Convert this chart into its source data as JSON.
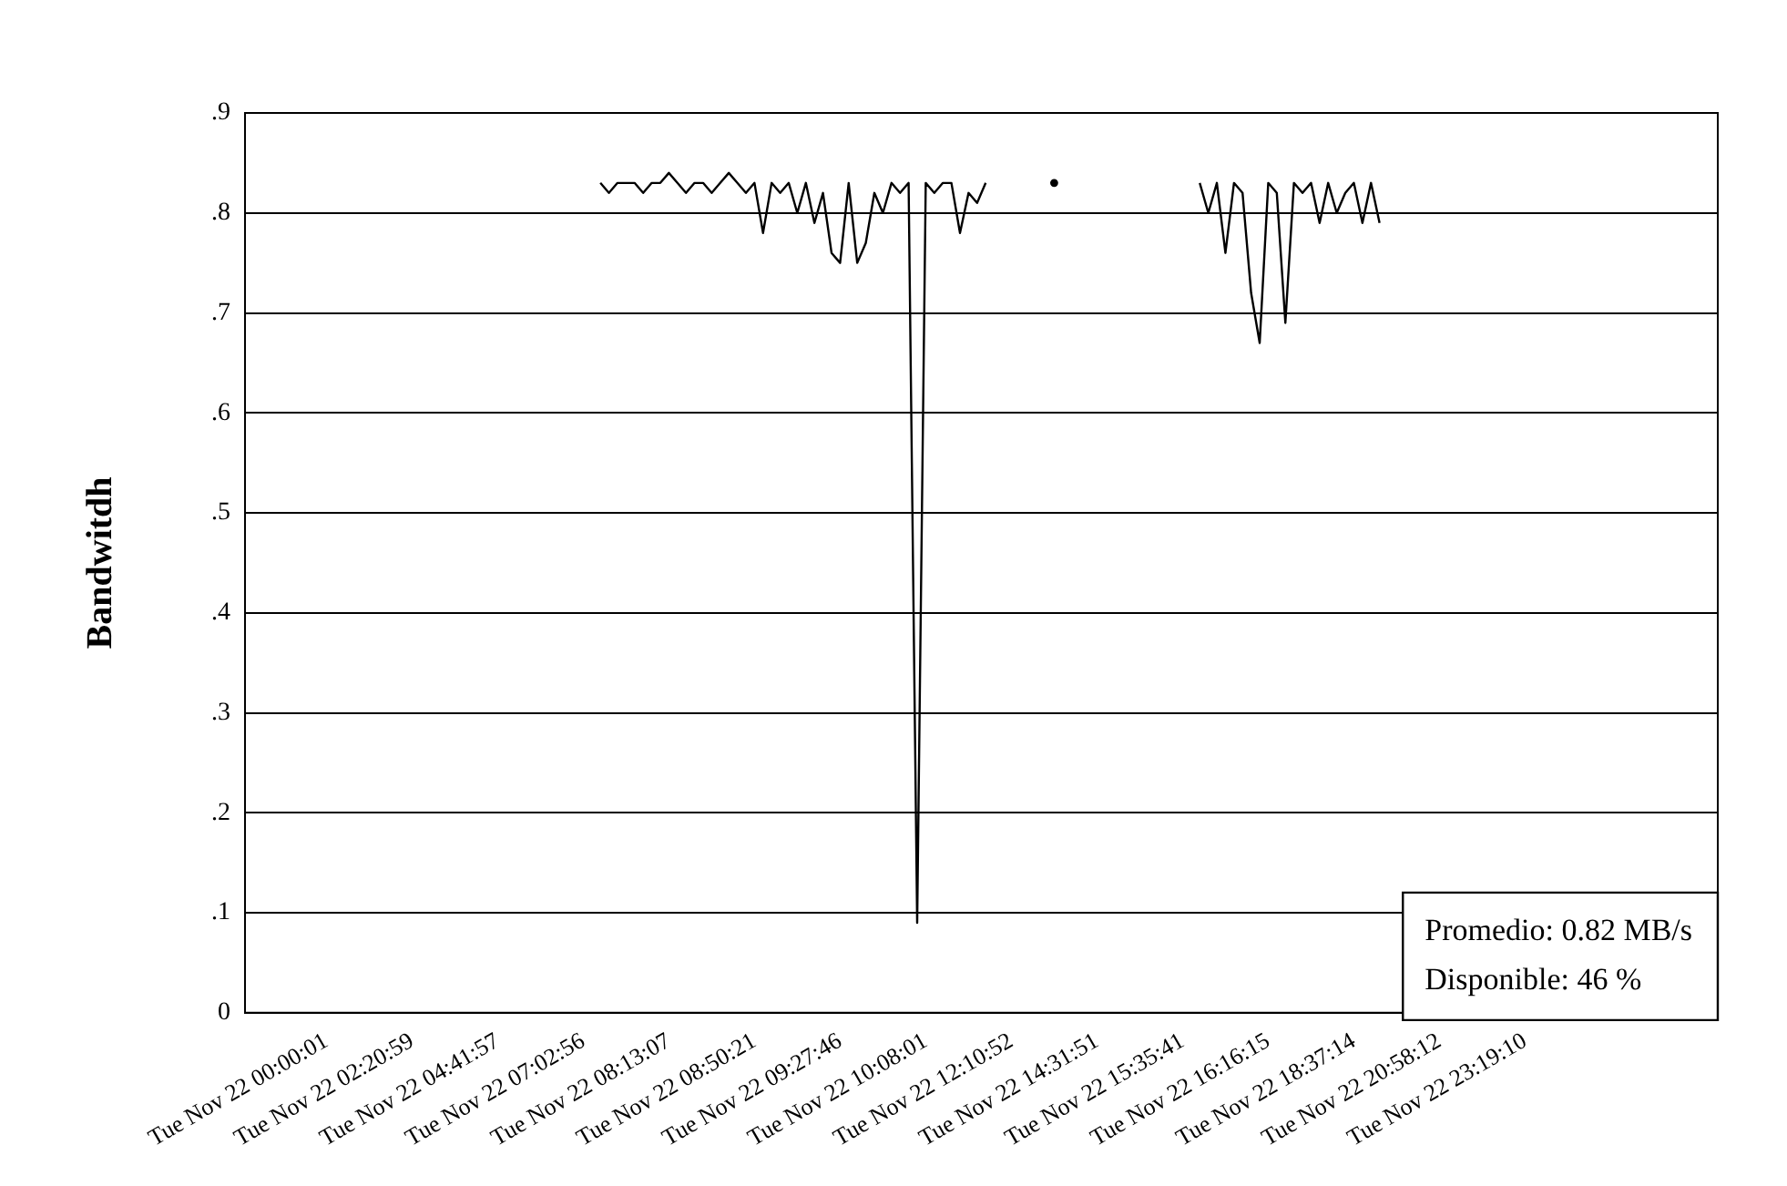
{
  "chart_data": {
    "type": "line",
    "ylabel": "Bandwitdh",
    "categories": [
      null,
      null,
      null,
      null,
      null,
      null,
      null,
      null,
      null,
      "Tue Nov 22 00:00:01",
      null,
      null,
      null,
      null,
      null,
      null,
      null,
      null,
      null,
      "Tue Nov 22 02:20:59",
      null,
      null,
      null,
      null,
      null,
      null,
      null,
      null,
      null,
      "Tue Nov 22 04:41:57",
      null,
      null,
      null,
      null,
      null,
      null,
      null,
      null,
      null,
      "Tue Nov 22 07:02:56",
      null,
      null,
      null,
      null,
      null,
      null,
      null,
      null,
      null,
      "Tue Nov 22 08:13:07",
      null,
      null,
      null,
      null,
      null,
      null,
      null,
      null,
      null,
      "Tue Nov 22 08:50:21",
      null,
      null,
      null,
      null,
      null,
      null,
      null,
      null,
      null,
      "Tue Nov 22 09:27:46",
      null,
      null,
      null,
      null,
      null,
      null,
      null,
      null,
      null,
      "Tue Nov 22 10:08:01",
      null,
      null,
      null,
      null,
      null,
      null,
      null,
      null,
      null,
      "Tue Nov 22 12:10:52",
      null,
      null,
      null,
      null,
      null,
      null,
      null,
      null,
      null,
      "Tue Nov 22 14:31:51",
      null,
      null,
      null,
      null,
      null,
      null,
      null,
      null,
      null,
      "Tue Nov 22 15:35:41",
      null,
      null,
      null,
      null,
      null,
      null,
      null,
      null,
      null,
      "Tue Nov 22 16:16:15",
      null,
      null,
      null,
      null,
      null,
      null,
      null,
      null,
      null,
      "Tue Nov 22 18:37:14",
      null,
      null,
      null,
      null,
      null,
      null,
      null,
      null,
      null,
      "Tue Nov 22 20:58:12",
      null,
      null,
      null,
      null,
      null,
      null,
      null,
      null,
      null,
      "Tue Nov 22 23:19:10",
      null,
      null,
      null,
      null,
      null,
      null,
      null,
      null,
      null,
      null,
      null,
      null,
      null,
      null,
      null,
      null,
      null,
      null,
      null,
      null,
      null,
      null
    ],
    "series": [
      {
        "color": "#000000",
        "values": [
          null,
          null,
          null,
          null,
          null,
          null,
          null,
          null,
          null,
          null,
          null,
          null,
          null,
          null,
          null,
          null,
          null,
          null,
          null,
          null,
          null,
          null,
          null,
          null,
          null,
          null,
          null,
          null,
          null,
          null,
          null,
          null,
          null,
          null,
          null,
          null,
          null,
          null,
          null,
          null,
          null,
          0.83,
          0.82,
          0.83,
          0.83,
          0.83,
          0.82,
          0.83,
          0.83,
          0.84,
          0.83,
          0.82,
          0.83,
          0.83,
          0.82,
          0.83,
          0.84,
          0.83,
          0.82,
          0.83,
          0.78,
          0.83,
          0.82,
          0.83,
          0.8,
          0.83,
          0.79,
          0.82,
          0.76,
          0.75,
          0.83,
          0.75,
          0.77,
          0.82,
          0.8,
          0.83,
          0.82,
          0.83,
          0.09,
          0.83,
          0.82,
          0.83,
          0.83,
          0.78,
          0.82,
          0.81,
          0.83,
          null,
          null,
          null,
          null,
          null,
          null,
          null,
          0.83,
          null,
          null,
          null,
          null,
          null,
          null,
          null,
          null,
          null,
          null,
          null,
          null,
          null,
          null,
          null,
          null,
          0.83,
          0.8,
          0.83,
          0.76,
          0.83,
          0.82,
          0.72,
          0.67,
          0.83,
          0.82,
          0.69,
          0.83,
          0.82,
          0.83,
          0.79,
          0.83,
          0.8,
          0.82,
          0.83,
          0.79,
          0.83,
          0.79,
          null,
          null,
          null,
          null,
          null,
          null,
          null,
          null,
          null,
          null,
          null,
          null,
          null,
          null,
          null,
          null,
          null,
          null,
          null,
          null,
          null,
          null,
          null,
          null,
          null,
          null,
          null,
          null,
          null,
          null,
          null,
          null,
          null,
          null,
          null,
          null,
          null,
          null,
          null
        ]
      }
    ],
    "ylim": [
      0,
      0.9
    ],
    "yticks": [
      0,
      {
        "value": 0.1,
        "label": ".1"
      },
      {
        "value": 0.2,
        "label": ".2"
      },
      {
        "value": 0.3,
        "label": ".3"
      },
      {
        "value": 0.4,
        "label": ".4"
      },
      {
        "value": 0.5,
        "label": ".5"
      },
      {
        "value": 0.6,
        "label": ".6"
      },
      {
        "value": 0.7,
        "label": ".7"
      },
      {
        "value": 0.8,
        "label": ".8"
      },
      {
        "value": 0.9,
        "label": ".9"
      }
    ],
    "grid": "y",
    "legend": false,
    "marker": "none",
    "line_style": "solid",
    "annotations": [
      "Promedio: 0.82 MB/s",
      "Disponible: 46 %"
    ]
  }
}
